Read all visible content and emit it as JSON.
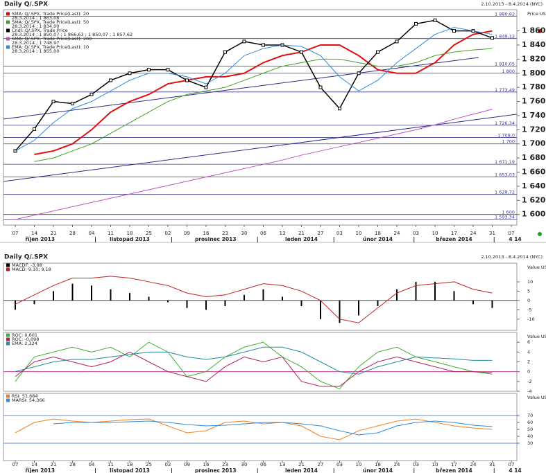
{
  "chart_data": [
    {
      "type": "line",
      "title": "Daily Q/.SPX",
      "subtitle": "2.10.2013 - 8.4.2014 (NYC)",
      "axis_label": "Price USD",
      "categories": [
        "07",
        "14",
        "21",
        "28",
        "04",
        "11",
        "18",
        "25",
        "02",
        "09",
        "16",
        "23",
        "30",
        "06",
        "13",
        "21",
        "27",
        "03",
        "10",
        "18",
        "24",
        "03",
        "10",
        "17",
        "24",
        "31",
        "07"
      ],
      "months": [
        "říjen 2013",
        "listopad 2013",
        "prosinec 2013",
        "leden 2014",
        "únor 2014",
        "březen 2014",
        "4 14"
      ],
      "ylim": [
        1585,
        1890
      ],
      "yticks": [
        {
          "value": 1600,
          "label": "1 600"
        },
        {
          "value": 1620,
          "label": "1 620"
        },
        {
          "value": 1640,
          "label": "1 640"
        },
        {
          "value": 1660,
          "label": "1 660"
        },
        {
          "value": 1680,
          "label": "1 680"
        },
        {
          "value": 1700,
          "label": "1 700"
        },
        {
          "value": 1720,
          "label": "1 720"
        },
        {
          "value": 1740,
          "label": "1 740"
        },
        {
          "value": 1760,
          "label": "1 760"
        },
        {
          "value": 1780,
          "label": "1 780"
        },
        {
          "value": 1800,
          "label": "1 800"
        },
        {
          "value": 1820,
          "label": "1 820"
        },
        {
          "value": 1840,
          "label": "1 840"
        },
        {
          "value": 1860,
          "label": "1 860"
        }
      ],
      "levels": [
        {
          "value": 1880.82,
          "label": "1 880,82"
        },
        {
          "value": 1849.12,
          "label": "1 849,12"
        },
        {
          "value": 1810.05,
          "label": "1 810,05"
        },
        {
          "value": 1800,
          "label": "1 800"
        },
        {
          "value": 1773.49,
          "label": "1 773,49"
        },
        {
          "value": 1726.34,
          "label": "1 726,34"
        },
        {
          "value": 1709.0,
          "label": "1 709,0"
        },
        {
          "value": 1700,
          "label": "1 700"
        },
        {
          "value": 1671.19,
          "label": "1 671,19"
        },
        {
          "value": 1653.03,
          "label": "1 653,03"
        },
        {
          "value": 1628.72,
          "label": "1 628,72"
        },
        {
          "value": 1600,
          "label": "1 600"
        },
        {
          "value": 1593.34,
          "label": "1 593,34"
        }
      ],
      "level_color": "#3a3a8c",
      "series": [
        {
          "name": "SMA: Q/.SPX, Trade Price(Last): 20",
          "legend_value": "28.3.2014 ; 1 863,06",
          "color": "#e01010",
          "width": 2,
          "values": [
            null,
            1685,
            1690,
            1700,
            1720,
            1745,
            1760,
            1770,
            1785,
            1790,
            1795,
            1795,
            1800,
            1815,
            1825,
            1830,
            1840,
            1840,
            1825,
            1805,
            1800,
            1800,
            1815,
            1840,
            1855,
            1860,
            null
          ]
        },
        {
          "name": "SMA: Q/.SPX, Trade Price(Last): 50",
          "legend_value": "28.3.2014 ; 1 834,00",
          "color": "#40a020",
          "width": 1,
          "values": [
            null,
            1675,
            1680,
            1690,
            1700,
            1715,
            1730,
            1745,
            1760,
            1770,
            1775,
            1780,
            1790,
            1800,
            1810,
            1815,
            1820,
            1820,
            1815,
            1810,
            1810,
            1815,
            1825,
            1830,
            1833,
            1835,
            null
          ]
        },
        {
          "name": "Cndl: Q/.SPX, Trade Price",
          "legend_value": "28.3.2014 ; 1 850,07 ; 1 866,63 ; 1 850,07 ; 1 857,62",
          "color": "#000000",
          "width": 1.5,
          "markers": true,
          "values": [
            1690,
            1721,
            1760,
            1757,
            1770,
            1790,
            1800,
            1805,
            1805,
            1790,
            1780,
            1830,
            1845,
            1840,
            1840,
            1830,
            1780,
            1750,
            1800,
            1830,
            1845,
            1870,
            1875,
            1860,
            1860,
            1850,
            null
          ]
        },
        {
          "name": "SMA: Q/.SPX, Trade Price(Last): 200",
          "legend_value": "28.3.2014 ; 1 748,97",
          "color": "#c050c0",
          "width": 1,
          "values": [
            1593,
            1599,
            1605,
            1611,
            1617,
            1623,
            1629,
            1635,
            1641,
            1647,
            1653,
            1659,
            1665,
            1671,
            1677,
            1684,
            1690,
            1696,
            1702,
            1708,
            1714,
            1720,
            1727,
            1735,
            1742,
            1749,
            null
          ]
        },
        {
          "name": "EMA: Q/.SPX, Trade Price(Last): 10",
          "legend_value": "28.3.2014 ; 1 855,00",
          "color": "#2f8ad8",
          "width": 1,
          "values": [
            1690,
            1705,
            1730,
            1750,
            1760,
            1775,
            1790,
            1800,
            1800,
            1795,
            1785,
            1800,
            1825,
            1835,
            1840,
            1838,
            1825,
            1795,
            1775,
            1790,
            1815,
            1835,
            1855,
            1865,
            1860,
            1855,
            null
          ]
        }
      ]
    },
    {
      "type": "bar",
      "title": "Daily Q/.SPX",
      "subtitle": "2.10.2013 - 8.4.2014 (NYC)",
      "axis_label": "Value USD",
      "ylim": [
        -16,
        20
      ],
      "yticks": [
        -10,
        -5,
        0,
        5,
        10
      ],
      "levels": [
        {
          "value": 0,
          "label": "0"
        }
      ],
      "level_color": "#000000",
      "series": [
        {
          "name": "MACDF: -3,08",
          "type": "bar",
          "color": "#000000",
          "values": [
            -5,
            -2,
            5,
            9,
            8,
            6,
            4,
            2,
            -1,
            -4,
            -5,
            -3,
            3,
            6,
            2,
            -3,
            -10,
            -12,
            -8,
            -3,
            6,
            10,
            10,
            5,
            -2,
            -4,
            null
          ]
        },
        {
          "name": "MACD: 9,10; 9,18",
          "type": "line",
          "color": "#c02020",
          "values": [
            -2,
            3,
            8,
            12,
            12,
            13,
            12,
            10,
            8,
            4,
            2,
            3,
            6,
            9,
            8,
            5,
            0,
            -10,
            -12,
            -4,
            4,
            8,
            9,
            10,
            6,
            4,
            null
          ]
        }
      ]
    },
    {
      "type": "line",
      "axis_label": "Value USD",
      "ylim": [
        -4,
        8
      ],
      "yticks": [
        -4,
        -2,
        0,
        2,
        4,
        6
      ],
      "levels": [
        {
          "value": 0,
          "label": "0"
        }
      ],
      "level_color": "#c02080",
      "series": [
        {
          "name": "ROC: 0,601",
          "color": "#40b030",
          "values": [
            -2,
            3,
            4,
            5,
            4,
            5,
            3,
            6,
            4,
            -1,
            0,
            3,
            5,
            6,
            3,
            1,
            -2,
            -3.5,
            1,
            4,
            5,
            3,
            2,
            1,
            0,
            -0.5,
            null
          ]
        },
        {
          "name": "ROC: -0,098",
          "color": "#b02060",
          "values": [
            -1,
            2,
            3,
            2,
            1,
            2,
            4,
            2,
            0,
            -1,
            -2,
            1,
            3,
            2,
            3,
            -2,
            -3,
            -3,
            0,
            2,
            3,
            2,
            1,
            0,
            0,
            -0.2,
            null
          ]
        },
        {
          "name": "EMA: 2,324",
          "color": "#208aa0",
          "values": [
            0,
            1,
            2,
            2.5,
            2.5,
            3,
            3.5,
            4,
            4,
            3,
            2.5,
            3,
            4,
            5,
            5,
            4,
            2,
            0,
            -0.5,
            1,
            2,
            3,
            2.8,
            2.6,
            2.3,
            2.3,
            null
          ]
        }
      ]
    },
    {
      "type": "line",
      "axis_label": "Value USD",
      "categories": [
        "07",
        "14",
        "21",
        "28",
        "04",
        "11",
        "18",
        "25",
        "02",
        "09",
        "16",
        "23",
        "30",
        "06",
        "13",
        "21",
        "27",
        "03",
        "10",
        "18",
        "24",
        "03",
        "10",
        "17",
        "24",
        "31",
        "07"
      ],
      "months": [
        "říjen 2013",
        "listopad 2013",
        "prosinec 2013",
        "leden 2014",
        "únor 2014",
        "březen 2014",
        "4 14"
      ],
      "ylim": [
        5,
        102
      ],
      "yticks": [
        30,
        40,
        50,
        60,
        70
      ],
      "levels": [
        {
          "value": 70,
          "label": "70"
        },
        {
          "value": 30,
          "label": "30"
        }
      ],
      "level_color": "#3060c0",
      "series": [
        {
          "name": "RSI: 51,684",
          "color": "#f08020",
          "values": [
            45,
            60,
            65,
            62,
            60,
            62,
            64,
            65,
            55,
            45,
            48,
            60,
            62,
            58,
            60,
            55,
            40,
            35,
            48,
            55,
            62,
            65,
            60,
            55,
            52,
            50,
            null
          ]
        },
        {
          "name": "MARSI: 54,366",
          "color": "#2f8ad8",
          "values": [
            null,
            null,
            58,
            60,
            60,
            60,
            61,
            62,
            60,
            57,
            55,
            56,
            58,
            60,
            60,
            58,
            55,
            48,
            42,
            45,
            55,
            60,
            62,
            60,
            56,
            54,
            null
          ]
        }
      ]
    }
  ]
}
